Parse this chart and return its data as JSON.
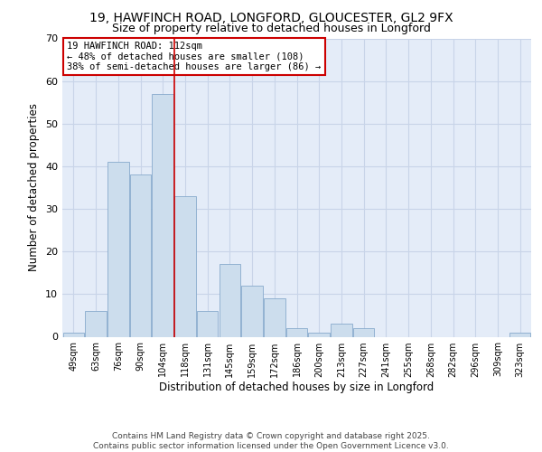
{
  "title1": "19, HAWFINCH ROAD, LONGFORD, GLOUCESTER, GL2 9FX",
  "title2": "Size of property relative to detached houses in Longford",
  "xlabel": "Distribution of detached houses by size in Longford",
  "ylabel": "Number of detached properties",
  "categories": [
    "49sqm",
    "63sqm",
    "76sqm",
    "90sqm",
    "104sqm",
    "118sqm",
    "131sqm",
    "145sqm",
    "159sqm",
    "172sqm",
    "186sqm",
    "200sqm",
    "213sqm",
    "227sqm",
    "241sqm",
    "255sqm",
    "268sqm",
    "282sqm",
    "296sqm",
    "309sqm",
    "323sqm"
  ],
  "values": [
    1,
    6,
    41,
    38,
    57,
    33,
    6,
    17,
    12,
    9,
    2,
    1,
    3,
    2,
    0,
    0,
    0,
    0,
    0,
    0,
    1
  ],
  "bar_color": "#ccdded",
  "bar_edge_color": "#88aacc",
  "vline_x": 4.5,
  "vline_color": "#cc0000",
  "annotation_text": "19 HAWFINCH ROAD: 112sqm\n← 48% of detached houses are smaller (108)\n38% of semi-detached houses are larger (86) →",
  "annotation_box_color": "#ffffff",
  "annotation_box_edge": "#cc0000",
  "ylim": [
    0,
    70
  ],
  "yticks": [
    0,
    10,
    20,
    30,
    40,
    50,
    60,
    70
  ],
  "grid_color": "#c8d4e8",
  "bg_color": "#e4ecf8",
  "footer": "Contains HM Land Registry data © Crown copyright and database right 2025.\nContains public sector information licensed under the Open Government Licence v3.0.",
  "title_fontsize": 10,
  "subtitle_fontsize": 9,
  "axis_label_fontsize": 8.5,
  "tick_fontsize": 7,
  "annotation_fontsize": 7.5,
  "footer_fontsize": 6.5
}
